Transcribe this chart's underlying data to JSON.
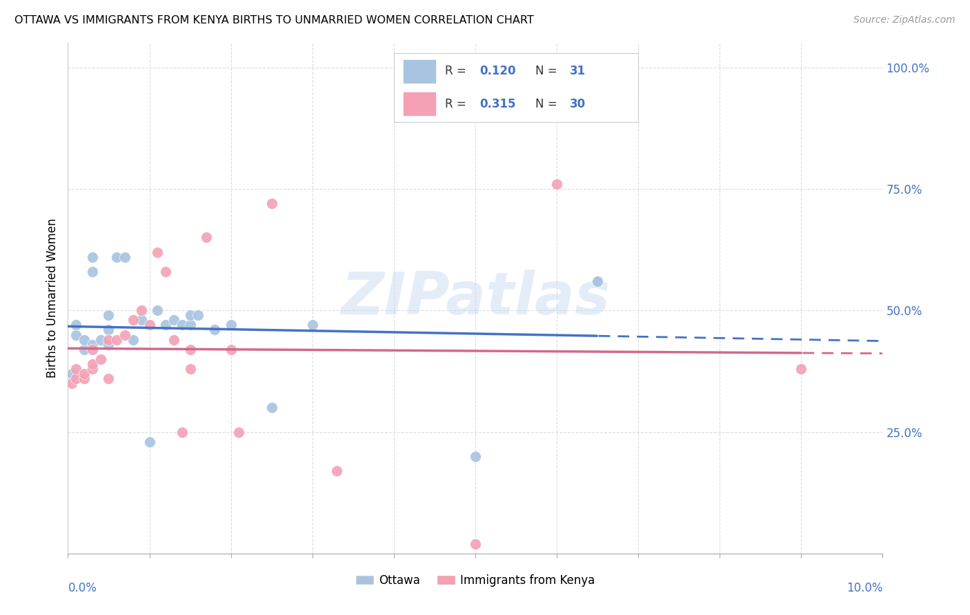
{
  "title": "OTTAWA VS IMMIGRANTS FROM KENYA BIRTHS TO UNMARRIED WOMEN CORRELATION CHART",
  "source": "Source: ZipAtlas.com",
  "ylabel": "Births to Unmarried Women",
  "watermark": "ZIPatlas",
  "xlim": [
    0.0,
    0.1
  ],
  "ylim": [
    0.0,
    1.05
  ],
  "legend_r1": "0.120",
  "legend_n1": "31",
  "legend_r2": "0.315",
  "legend_n2": "30",
  "ottawa_color": "#a8c4e0",
  "kenya_color": "#f4a0b5",
  "ottawa_line_color": "#4472c4",
  "kenya_line_color": "#d4688a",
  "text_color": "#4472c4",
  "background_color": "#ffffff",
  "grid_color": "#dddddd",
  "ottawa_x": [
    0.0005,
    0.001,
    0.001,
    0.002,
    0.002,
    0.003,
    0.003,
    0.003,
    0.004,
    0.005,
    0.005,
    0.005,
    0.006,
    0.007,
    0.008,
    0.009,
    0.01,
    0.011,
    0.012,
    0.013,
    0.014,
    0.015,
    0.015,
    0.016,
    0.018,
    0.02,
    0.025,
    0.03,
    0.05,
    0.065,
    0.065
  ],
  "ottawa_y": [
    0.37,
    0.45,
    0.47,
    0.42,
    0.44,
    0.43,
    0.58,
    0.61,
    0.44,
    0.43,
    0.46,
    0.49,
    0.61,
    0.61,
    0.44,
    0.48,
    0.23,
    0.5,
    0.47,
    0.48,
    0.47,
    0.47,
    0.49,
    0.49,
    0.46,
    0.47,
    0.3,
    0.47,
    0.2,
    0.56,
    0.56
  ],
  "kenya_x": [
    0.0005,
    0.001,
    0.001,
    0.002,
    0.002,
    0.003,
    0.003,
    0.003,
    0.004,
    0.005,
    0.005,
    0.006,
    0.007,
    0.008,
    0.009,
    0.01,
    0.011,
    0.012,
    0.013,
    0.014,
    0.015,
    0.015,
    0.017,
    0.02,
    0.021,
    0.025,
    0.033,
    0.05,
    0.06,
    0.09
  ],
  "kenya_y": [
    0.35,
    0.36,
    0.38,
    0.36,
    0.37,
    0.38,
    0.39,
    0.42,
    0.4,
    0.36,
    0.44,
    0.44,
    0.45,
    0.48,
    0.5,
    0.47,
    0.62,
    0.58,
    0.44,
    0.25,
    0.38,
    0.42,
    0.65,
    0.42,
    0.25,
    0.72,
    0.17,
    0.02,
    0.76,
    0.38
  ],
  "yticks": [
    0.0,
    0.25,
    0.5,
    0.75,
    1.0
  ],
  "ytick_labels": [
    "",
    "25.0%",
    "50.0%",
    "75.0%",
    "100.0%"
  ],
  "xticks": [
    0.0,
    0.01,
    0.02,
    0.03,
    0.04,
    0.05,
    0.06,
    0.07,
    0.08,
    0.09,
    0.1
  ]
}
